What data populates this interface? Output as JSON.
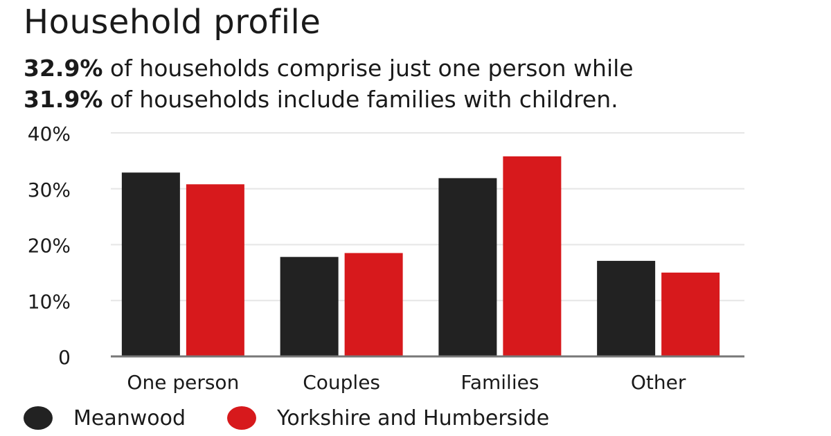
{
  "header": {
    "title": "Household profile",
    "line1_bold": "32.9%",
    "line1_rest": " of households comprise just one person while",
    "line2_bold": "31.9%",
    "line2_rest": " of households include families with children."
  },
  "colors": {
    "meanwood": "#222222",
    "yorkshire": "#d7191c",
    "grid": "#e6e6e6",
    "axis": "#777777",
    "text": "#1a1a1a"
  },
  "chart_data": {
    "type": "bar",
    "categories": [
      "One person",
      "Couples",
      "Families",
      "Other"
    ],
    "series": [
      {
        "name": "Meanwood",
        "values": [
          32.9,
          17.8,
          31.9,
          17.1
        ]
      },
      {
        "name": "Yorkshire and Humberside",
        "values": [
          30.8,
          18.5,
          35.8,
          15.0
        ]
      }
    ],
    "yticks": [
      0,
      10,
      20,
      30,
      40
    ],
    "ytick_labels": [
      "0",
      "10%",
      "20%",
      "30%",
      "40%"
    ],
    "ylim": [
      0,
      40
    ],
    "grid": true,
    "legend_position": "bottom-left",
    "title": "Household profile",
    "xlabel": "",
    "ylabel": ""
  }
}
